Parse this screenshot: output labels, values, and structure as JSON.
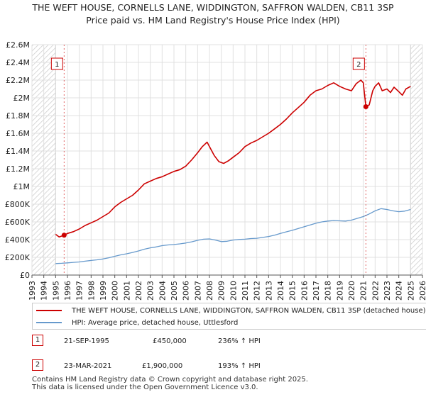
{
  "title_line1": "THE WEFT HOUSE, CORNELLS LANE, WIDDINGTON, SAFFRON WALDEN, CB11 3SP",
  "title_line2": "Price paid vs. HM Land Registry's House Price Index (HPI)",
  "colors": {
    "property": "#cc0000",
    "hpi": "#6699cc",
    "grid": "#e0e0e0",
    "sale_line": "#cc0000",
    "hatch": "#cccccc"
  },
  "chart_data": {
    "type": "line",
    "title": "Price paid vs. HM Land Registry's House Price Index (HPI)",
    "xlabel": "",
    "ylabel": "",
    "xlim": [
      1993,
      2026
    ],
    "ylim": [
      0,
      2600000
    ],
    "y_ticks": [
      0,
      200000,
      400000,
      600000,
      800000,
      1000000,
      1200000,
      1400000,
      1600000,
      1800000,
      2000000,
      2200000,
      2400000,
      2600000
    ],
    "y_tick_labels": [
      "£0",
      "£200K",
      "£400K",
      "£600K",
      "£800K",
      "£1M",
      "£1.2M",
      "£1.4M",
      "£1.6M",
      "£1.8M",
      "£2M",
      "£2.2M",
      "£2.4M",
      "£2.6M"
    ],
    "x_ticks": [
      1993,
      1994,
      1995,
      1996,
      1997,
      1998,
      1999,
      2000,
      2001,
      2002,
      2003,
      2004,
      2005,
      2006,
      2007,
      2008,
      2009,
      2010,
      2011,
      2012,
      2013,
      2014,
      2015,
      2016,
      2017,
      2018,
      2019,
      2020,
      2021,
      2022,
      2023,
      2024,
      2025,
      2026
    ],
    "x_tick_labels": [
      "1993",
      "1994",
      "1995",
      "1996",
      "1997",
      "1998",
      "1999",
      "2000",
      "2001",
      "2002",
      "2003",
      "2004",
      "2005",
      "2006",
      "2007",
      "2008",
      "2009",
      "2010",
      "2011",
      "2012",
      "2013",
      "2014",
      "2015",
      "2016",
      "2017",
      "2018",
      "2019",
      "2020",
      "2021",
      "2022",
      "2023",
      "2024",
      "2025",
      "2026"
    ],
    "hatched_before": 1995.0,
    "hatched_after": 2025.0,
    "series": [
      {
        "name": "THE WEFT HOUSE, CORNELLS LANE, WIDDINGTON, SAFFRON WALDEN, CB11 3SP (detached house)",
        "x": [
          1995.0,
          1995.3,
          1995.72,
          1996.0,
          1996.5,
          1997.0,
          1997.5,
          1998.0,
          1998.5,
          1999.0,
          1999.5,
          2000.0,
          2000.5,
          2001.0,
          2001.5,
          2002.0,
          2002.5,
          2003.0,
          2003.5,
          2004.0,
          2004.5,
          2005.0,
          2005.5,
          2006.0,
          2006.5,
          2007.0,
          2007.4,
          2007.8,
          2008.0,
          2008.4,
          2008.8,
          2009.2,
          2009.6,
          2010.0,
          2010.5,
          2011.0,
          2011.5,
          2012.0,
          2012.5,
          2013.0,
          2013.5,
          2014.0,
          2014.5,
          2015.0,
          2015.5,
          2016.0,
          2016.5,
          2017.0,
          2017.5,
          2018.0,
          2018.5,
          2019.0,
          2019.5,
          2020.0,
          2020.4,
          2020.8,
          2021.0,
          2021.22,
          2021.5,
          2021.8,
          2022.0,
          2022.3,
          2022.6,
          2023.0,
          2023.3,
          2023.6,
          2024.0,
          2024.3,
          2024.6,
          2025.0
        ],
        "values": [
          460000,
          430000,
          450000,
          470000,
          490000,
          520000,
          560000,
          590000,
          620000,
          660000,
          700000,
          770000,
          820000,
          860000,
          900000,
          960000,
          1030000,
          1060000,
          1090000,
          1110000,
          1140000,
          1170000,
          1190000,
          1230000,
          1300000,
          1380000,
          1450000,
          1500000,
          1450000,
          1350000,
          1280000,
          1260000,
          1290000,
          1330000,
          1380000,
          1450000,
          1490000,
          1520000,
          1560000,
          1600000,
          1650000,
          1700000,
          1760000,
          1830000,
          1890000,
          1950000,
          2030000,
          2080000,
          2100000,
          2140000,
          2170000,
          2130000,
          2100000,
          2080000,
          2160000,
          2200000,
          2170000,
          1900000,
          1920000,
          2080000,
          2130000,
          2170000,
          2080000,
          2100000,
          2060000,
          2120000,
          2070000,
          2030000,
          2100000,
          2130000
        ]
      },
      {
        "name": "HPI: Average price, detached house, Uttlesford",
        "x": [
          1995.0,
          1995.5,
          1996.0,
          1996.5,
          1997.0,
          1997.5,
          1998.0,
          1998.5,
          1999.0,
          1999.5,
          2000.0,
          2000.5,
          2001.0,
          2001.5,
          2002.0,
          2002.5,
          2003.0,
          2003.5,
          2004.0,
          2004.5,
          2005.0,
          2005.5,
          2006.0,
          2006.5,
          2007.0,
          2007.5,
          2008.0,
          2008.5,
          2009.0,
          2009.5,
          2010.0,
          2010.5,
          2011.0,
          2011.5,
          2012.0,
          2012.5,
          2013.0,
          2013.5,
          2014.0,
          2014.5,
          2015.0,
          2015.5,
          2016.0,
          2016.5,
          2017.0,
          2017.5,
          2018.0,
          2018.5,
          2019.0,
          2019.5,
          2020.0,
          2020.5,
          2021.0,
          2021.5,
          2022.0,
          2022.5,
          2023.0,
          2023.5,
          2024.0,
          2024.5,
          2025.0
        ],
        "values": [
          130000,
          133000,
          138000,
          143000,
          148000,
          157000,
          165000,
          172000,
          182000,
          195000,
          212000,
          228000,
          240000,
          255000,
          272000,
          292000,
          307000,
          318000,
          332000,
          340000,
          345000,
          352000,
          362000,
          375000,
          392000,
          405000,
          408000,
          395000,
          378000,
          382000,
          395000,
          402000,
          405000,
          412000,
          415000,
          425000,
          435000,
          450000,
          470000,
          488000,
          505000,
          525000,
          545000,
          565000,
          585000,
          600000,
          610000,
          615000,
          612000,
          610000,
          620000,
          640000,
          660000,
          690000,
          725000,
          750000,
          740000,
          725000,
          715000,
          722000,
          740000
        ]
      }
    ],
    "annotations": [
      {
        "label": "1",
        "x": 1995.72,
        "y": 450000
      },
      {
        "label": "2",
        "x": 2021.22,
        "y": 1900000
      }
    ]
  },
  "legend": {
    "property_label": "THE WEFT HOUSE, CORNELLS LANE, WIDDINGTON, SAFFRON WALDEN, CB11 3SP (detached house)",
    "hpi_label": "HPI: Average price, detached house, Uttlesford"
  },
  "sales": [
    {
      "num": "1",
      "date": "21-SEP-1995",
      "price": "£450,000",
      "hpi": "236% ↑ HPI"
    },
    {
      "num": "2",
      "date": "23-MAR-2021",
      "price": "£1,900,000",
      "hpi": "193% ↑ HPI"
    }
  ],
  "footer_line1": "Contains HM Land Registry data © Crown copyright and database right 2025.",
  "footer_line2": "This data is licensed under the Open Government Licence v3.0."
}
